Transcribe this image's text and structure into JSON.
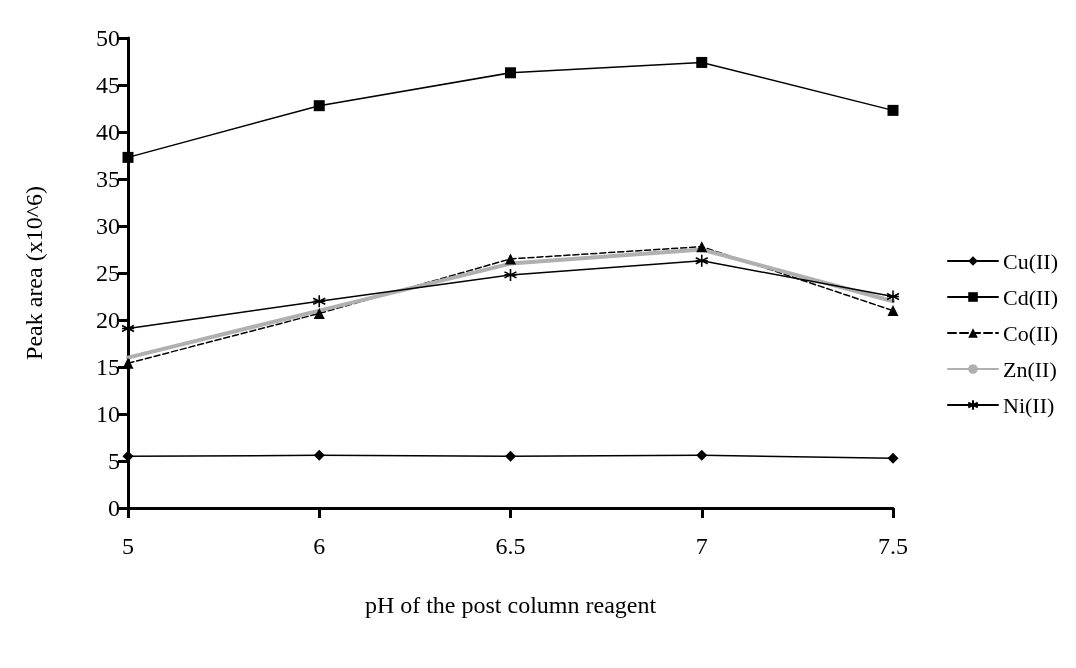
{
  "chart_data": {
    "type": "line",
    "xlabel": "pH of the post column reagent",
    "ylabel": "Peak area (x10^6)",
    "categories": [
      "5",
      "6",
      "6.5",
      "7",
      "7.5"
    ],
    "series": [
      {
        "name": "Cu(II)",
        "color": "#000000",
        "marker": "diamond",
        "values": [
          5.5,
          5.6,
          5.5,
          5.6,
          5.3
        ]
      },
      {
        "name": "Cd(II)",
        "color": "#000000",
        "marker": "square",
        "values": [
          37.3,
          42.8,
          46.3,
          47.4,
          42.3
        ]
      },
      {
        "name": "Co(II)",
        "color": "#000000",
        "marker": "triangle",
        "line_style": "dashed",
        "values": [
          15.4,
          20.7,
          26.5,
          27.8,
          21.0
        ]
      },
      {
        "name": "Zn(II)",
        "color": "#b0b0b0",
        "marker": "none",
        "values": [
          16.0,
          21.0,
          26.0,
          27.5,
          22.0
        ]
      },
      {
        "name": "Ni(II)",
        "color": "#000000",
        "marker": "cross",
        "values": [
          19.1,
          22.0,
          24.8,
          26.3,
          22.5
        ]
      }
    ],
    "ylim": [
      0,
      50
    ],
    "yticks": [
      0,
      5,
      10,
      15,
      20,
      25,
      30,
      35,
      40,
      45,
      50
    ],
    "grid": false,
    "legend": "right",
    "line_style": "solid"
  }
}
